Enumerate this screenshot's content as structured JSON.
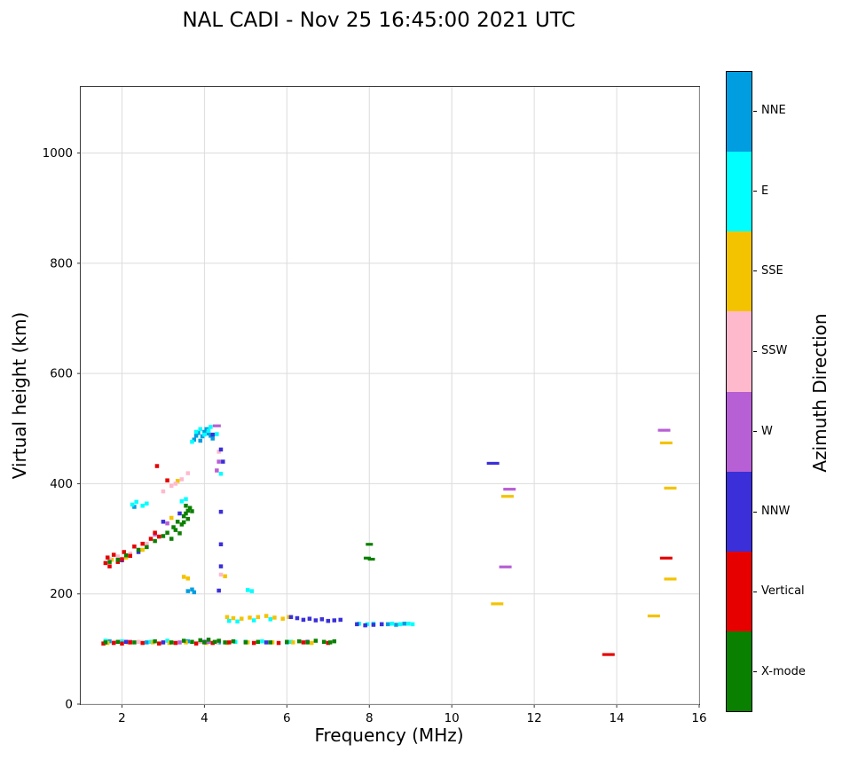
{
  "chart_data": {
    "type": "scatter",
    "title": "NAL CADI - Nov 25 16:45:00 2021 UTC",
    "xlabel": "Frequency (MHz)",
    "ylabel": "Virtual height (km)",
    "xlim": [
      1.0,
      16
    ],
    "ylim": [
      0,
      1120
    ],
    "xticks": [
      2,
      4,
      6,
      8,
      10,
      12,
      14,
      16
    ],
    "yticks": [
      0,
      200,
      400,
      600,
      800,
      1000
    ],
    "grid": true,
    "marker": "square",
    "colorbar": {
      "label": "Azimuth Direction",
      "categories": [
        {
          "label": "NNE",
          "color": "#009ee0"
        },
        {
          "label": "E",
          "color": "#00ffff"
        },
        {
          "label": "SSE",
          "color": "#f3c300"
        },
        {
          "label": "SSW",
          "color": "#ffb9cd"
        },
        {
          "label": "W",
          "color": "#b75fd4"
        },
        {
          "label": "NNW",
          "color": "#3a2fd8"
        },
        {
          "label": "Vertical",
          "color": "#e60000"
        },
        {
          "label": "X-mode",
          "color": "#0a8000"
        }
      ]
    },
    "series": [
      {
        "name": "NNE",
        "points": [
          [
            1.7,
            114
          ],
          [
            2.6,
            112
          ],
          [
            3.6,
            114
          ],
          [
            4.35,
            112
          ],
          [
            5.0,
            113
          ],
          [
            6.0,
            112
          ],
          [
            3.6,
            205
          ],
          [
            3.7,
            208
          ],
          [
            3.75,
            203
          ],
          [
            2.3,
            358
          ],
          [
            3.75,
            480
          ],
          [
            3.8,
            487
          ],
          [
            3.85,
            492
          ],
          [
            3.9,
            478
          ],
          [
            3.95,
            486
          ],
          [
            4.0,
            494
          ],
          [
            4.05,
            499
          ],
          [
            4.1,
            491
          ],
          [
            4.15,
            487
          ],
          [
            4.2,
            482
          ],
          [
            8.45,
            145
          ],
          [
            8.65,
            144
          ],
          [
            8.85,
            146
          ]
        ]
      },
      {
        "name": "E",
        "points": [
          [
            1.6,
            115
          ],
          [
            2.0,
            114
          ],
          [
            2.7,
            113
          ],
          [
            3.1,
            115
          ],
          [
            4.75,
            113
          ],
          [
            5.4,
            114
          ],
          [
            6.1,
            113
          ],
          [
            2.25,
            362
          ],
          [
            2.35,
            367
          ],
          [
            2.5,
            360
          ],
          [
            2.6,
            364
          ],
          [
            3.45,
            368
          ],
          [
            3.55,
            372
          ],
          [
            3.7,
            476
          ],
          [
            3.8,
            494
          ],
          [
            3.9,
            499
          ],
          [
            4.0,
            489
          ],
          [
            4.1,
            496
          ],
          [
            4.15,
            503
          ],
          [
            4.3,
            490
          ],
          [
            4.4,
            418
          ],
          [
            5.05,
            207
          ],
          [
            5.15,
            205
          ],
          [
            4.6,
            151
          ],
          [
            4.8,
            150
          ],
          [
            5.2,
            152
          ],
          [
            5.6,
            154
          ],
          [
            7.75,
            146
          ],
          [
            7.95,
            145
          ],
          [
            8.1,
            146
          ],
          [
            8.3,
            145
          ],
          [
            8.55,
            146
          ],
          [
            8.75,
            145
          ],
          [
            8.95,
            146
          ],
          [
            9.05,
            145
          ]
        ]
      },
      {
        "name": "SSE",
        "points": [
          [
            1.65,
            111
          ],
          [
            2.15,
            112
          ],
          [
            2.75,
            112
          ],
          [
            3.15,
            111
          ],
          [
            3.55,
            112
          ],
          [
            4.05,
            111
          ],
          [
            4.55,
            111
          ],
          [
            5.05,
            112
          ],
          [
            5.65,
            112
          ],
          [
            6.15,
            112
          ],
          [
            6.6,
            111
          ],
          [
            1.75,
            262
          ],
          [
            2.1,
            266
          ],
          [
            2.5,
            280
          ],
          [
            3.2,
            338
          ],
          [
            3.35,
            405
          ],
          [
            3.5,
            231
          ],
          [
            3.6,
            228
          ],
          [
            4.5,
            232
          ],
          [
            4.55,
            158
          ],
          [
            4.7,
            156
          ],
          [
            4.9,
            155
          ],
          [
            5.1,
            157
          ],
          [
            5.3,
            158
          ],
          [
            5.5,
            160
          ],
          [
            5.7,
            157
          ],
          [
            5.9,
            155
          ],
          [
            6.05,
            158
          ],
          [
            11.1,
            182,
            14
          ],
          [
            11.35,
            377,
            14
          ],
          [
            14.9,
            160,
            14
          ],
          [
            15.2,
            474,
            14
          ],
          [
            15.3,
            392,
            14
          ],
          [
            15.3,
            227,
            14
          ]
        ]
      },
      {
        "name": "SSW",
        "points": [
          [
            1.8,
            112
          ],
          [
            2.4,
            113
          ],
          [
            3.0,
            112
          ],
          [
            3.9,
            113
          ],
          [
            4.3,
            112
          ],
          [
            1.7,
            263
          ],
          [
            1.9,
            268
          ],
          [
            2.2,
            273
          ],
          [
            2.6,
            291
          ],
          [
            3.0,
            386
          ],
          [
            3.2,
            396
          ],
          [
            3.3,
            400
          ],
          [
            3.45,
            408
          ],
          [
            3.6,
            419
          ],
          [
            4.4,
            235
          ],
          [
            4.35,
            458
          ]
        ]
      },
      {
        "name": "W",
        "points": [
          [
            2.2,
            113
          ],
          [
            3.4,
            112
          ],
          [
            4.1,
            113
          ],
          [
            2.8,
            308
          ],
          [
            3.1,
            328
          ],
          [
            4.3,
            505,
            9
          ],
          [
            4.35,
            440
          ],
          [
            4.3,
            424
          ],
          [
            11.3,
            249,
            14
          ],
          [
            11.4,
            390,
            14
          ],
          [
            15.15,
            497,
            14
          ]
        ]
      },
      {
        "name": "NNW",
        "points": [
          [
            2.1,
            113
          ],
          [
            3.0,
            112
          ],
          [
            4.0,
            113
          ],
          [
            5.5,
            112
          ],
          [
            6.5,
            113
          ],
          [
            2.0,
            261
          ],
          [
            2.4,
            276
          ],
          [
            3.0,
            331
          ],
          [
            3.4,
            346
          ],
          [
            4.35,
            206
          ],
          [
            4.4,
            250
          ],
          [
            4.4,
            290
          ],
          [
            4.4,
            349
          ],
          [
            4.45,
            440
          ],
          [
            4.4,
            462
          ],
          [
            4.2,
            489
          ],
          [
            6.1,
            158
          ],
          [
            6.25,
            156
          ],
          [
            6.4,
            153
          ],
          [
            6.55,
            155
          ],
          [
            6.7,
            152
          ],
          [
            6.85,
            154
          ],
          [
            7.0,
            151
          ],
          [
            7.15,
            152
          ],
          [
            7.3,
            153
          ],
          [
            7.7,
            145
          ],
          [
            7.9,
            143
          ],
          [
            8.1,
            144
          ],
          [
            8.3,
            145
          ],
          [
            11.0,
            437,
            14
          ]
        ]
      },
      {
        "name": "Vertical",
        "points": [
          [
            1.55,
            110
          ],
          [
            1.8,
            111
          ],
          [
            2.0,
            110
          ],
          [
            2.2,
            112
          ],
          [
            2.5,
            111
          ],
          [
            2.9,
            110
          ],
          [
            3.3,
            111
          ],
          [
            3.8,
            110
          ],
          [
            4.2,
            111
          ],
          [
            4.6,
            112
          ],
          [
            5.2,
            111
          ],
          [
            5.8,
            111
          ],
          [
            6.4,
            112
          ],
          [
            7.0,
            111
          ],
          [
            1.6,
            256
          ],
          [
            1.65,
            266
          ],
          [
            1.7,
            250
          ],
          [
            1.8,
            271
          ],
          [
            1.9,
            258
          ],
          [
            2.0,
            263
          ],
          [
            2.05,
            276
          ],
          [
            2.2,
            269
          ],
          [
            2.3,
            286
          ],
          [
            2.5,
            291
          ],
          [
            2.7,
            300
          ],
          [
            2.8,
            311
          ],
          [
            2.9,
            304
          ],
          [
            2.85,
            432
          ],
          [
            3.1,
            406
          ],
          [
            13.8,
            90,
            14
          ],
          [
            15.2,
            265,
            14
          ]
        ]
      },
      {
        "name": "X-mode",
        "points": [
          [
            1.6,
            112
          ],
          [
            1.9,
            113
          ],
          [
            2.3,
            112
          ],
          [
            2.8,
            114
          ],
          [
            3.2,
            112
          ],
          [
            3.5,
            115
          ],
          [
            3.7,
            113
          ],
          [
            3.9,
            116
          ],
          [
            4.0,
            112
          ],
          [
            4.1,
            117
          ],
          [
            4.25,
            113
          ],
          [
            4.35,
            115
          ],
          [
            4.5,
            112
          ],
          [
            4.7,
            114
          ],
          [
            5.0,
            112
          ],
          [
            5.3,
            113
          ],
          [
            5.6,
            112
          ],
          [
            6.0,
            113
          ],
          [
            6.3,
            114
          ],
          [
            6.5,
            112
          ],
          [
            6.7,
            115
          ],
          [
            6.9,
            113
          ],
          [
            7.05,
            112
          ],
          [
            7.15,
            114
          ],
          [
            1.7,
            258
          ],
          [
            1.9,
            262
          ],
          [
            2.1,
            270
          ],
          [
            2.4,
            280
          ],
          [
            2.6,
            285
          ],
          [
            2.8,
            296
          ],
          [
            3.0,
            305
          ],
          [
            3.1,
            311
          ],
          [
            3.2,
            300
          ],
          [
            3.25,
            321
          ],
          [
            3.3,
            316
          ],
          [
            3.35,
            331
          ],
          [
            3.4,
            310
          ],
          [
            3.45,
            326
          ],
          [
            3.5,
            341
          ],
          [
            3.55,
            346
          ],
          [
            3.6,
            351
          ],
          [
            3.65,
            356
          ],
          [
            3.7,
            350
          ],
          [
            3.6,
            336
          ],
          [
            3.5,
            330
          ],
          [
            3.55,
            360
          ],
          [
            7.95,
            265,
            8
          ],
          [
            8.0,
            290,
            8
          ],
          [
            8.05,
            263,
            8
          ]
        ]
      }
    ]
  }
}
